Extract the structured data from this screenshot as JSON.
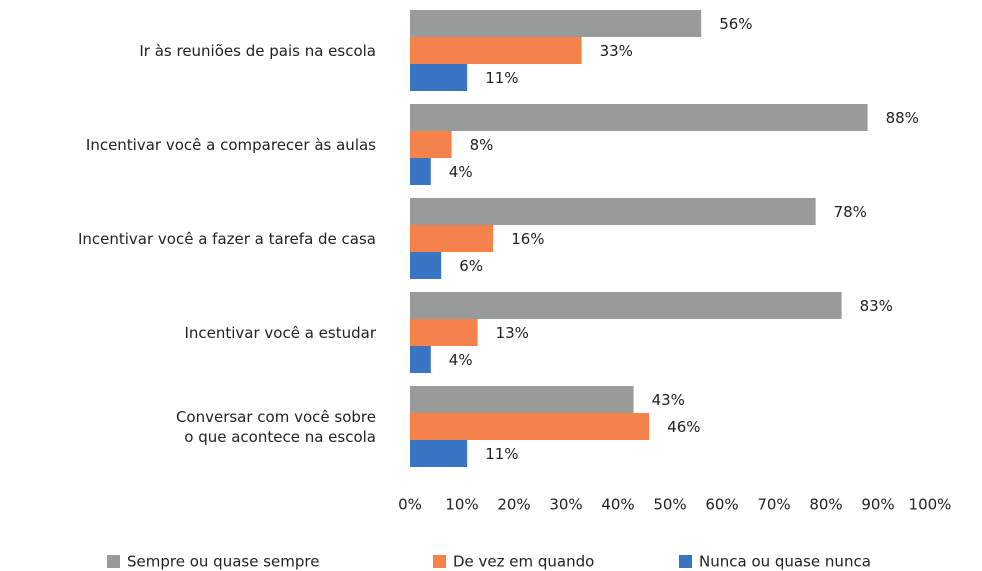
{
  "chart_data": {
    "type": "bar",
    "orientation": "horizontal",
    "categories": [
      "Ir às reuniões de pais na escola",
      "Incentivar você a comparecer às aulas",
      "Incentivar você a fazer a tarefa de casa",
      "Incentivar você a estudar",
      "Conversar com você sobre\no que acontece na escola"
    ],
    "series": [
      {
        "name": "Sempre ou quase sempre",
        "color": "#999a9a",
        "values": [
          56,
          88,
          78,
          83,
          43
        ],
        "value_labels": [
          "56%",
          "88%",
          "78%",
          "83%",
          "43%"
        ]
      },
      {
        "name": "De vez em quando",
        "color": "#f4824a",
        "values": [
          33,
          8,
          16,
          13,
          46
        ],
        "value_labels": [
          "33%",
          "8%",
          "16%",
          "13%",
          "46%"
        ]
      },
      {
        "name": "Nunca ou quase nunca",
        "color": "#3a75c4",
        "values": [
          11,
          4,
          6,
          4,
          11
        ],
        "value_labels": [
          "11%",
          "4%",
          "6%",
          "4%",
          "11%"
        ]
      }
    ],
    "xlim": [
      0,
      100
    ],
    "xticks": [
      {
        "value": 0,
        "label": "0%"
      },
      {
        "value": 10,
        "label": "10%"
      },
      {
        "value": 20,
        "label": "20%"
      },
      {
        "value": 30,
        "label": "30%"
      },
      {
        "value": 40,
        "label": "40%"
      },
      {
        "value": 50,
        "label": "50%"
      },
      {
        "value": 60,
        "label": "60%"
      },
      {
        "value": 70,
        "label": "70%"
      },
      {
        "value": 80,
        "label": "80%"
      },
      {
        "value": 90,
        "label": "90%"
      },
      {
        "value": 100,
        "label": "100%"
      }
    ],
    "legend": "bottom"
  }
}
